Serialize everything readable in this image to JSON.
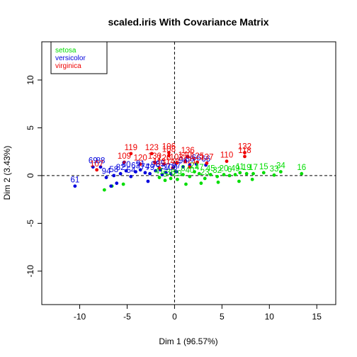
{
  "chart_data": {
    "type": "scatter",
    "title": "scaled.iris With Covariance Matrix",
    "xlabel": "Dim 1 (96.57%)",
    "ylabel": "Dim 2 (3.43%)",
    "xlim": [
      -14,
      17
    ],
    "ylim": [
      -13.5,
      14
    ],
    "xticks": [
      -10,
      -5,
      0,
      5,
      10,
      15
    ],
    "yticks": [
      -10,
      -5,
      0,
      5,
      10
    ],
    "grid": false,
    "reference_lines": {
      "x": 0,
      "y": 0,
      "style": "dashed"
    },
    "legend": {
      "position": "top-left",
      "entries": [
        {
          "name": "setosa",
          "color": "#00dd00"
        },
        {
          "name": "versicolor",
          "color": "#0000dd"
        },
        {
          "name": "virginica",
          "color": "#ee0000"
        }
      ]
    },
    "series": [
      {
        "name": "setosa",
        "color": "#00dd00",
        "points": [
          {
            "x": 13.4,
            "y": 0.2,
            "label": "16"
          },
          {
            "x": 11.2,
            "y": 0.4,
            "label": "34"
          },
          {
            "x": 10.5,
            "y": 0.05,
            "label": "33"
          },
          {
            "x": 9.4,
            "y": 0.3,
            "label": "15"
          },
          {
            "x": 8.3,
            "y": 0.2,
            "label": "17"
          },
          {
            "x": 7.6,
            "y": 0.2,
            "label": "19"
          },
          {
            "x": 6.9,
            "y": 0.3,
            "label": "11"
          },
          {
            "x": 6.4,
            "y": 0.1,
            "label": "49"
          },
          {
            "x": 5.8,
            "y": 0.0,
            "label": "6"
          },
          {
            "x": 5.2,
            "y": 0.1,
            "label": "20"
          },
          {
            "x": 4.5,
            "y": -0.1,
            "label": "32"
          },
          {
            "x": 3.8,
            "y": 0.1,
            "label": "45"
          },
          {
            "x": 3.2,
            "y": -0.3,
            "label": "23"
          },
          {
            "x": 2.6,
            "y": 0.2,
            "label": "47"
          },
          {
            "x": 2.1,
            "y": 0.4,
            "label": "21"
          },
          {
            "x": 1.6,
            "y": -0.1,
            "label": "40"
          },
          {
            "x": 0.9,
            "y": 0.1,
            "label": "8"
          },
          {
            "x": 0.3,
            "y": -0.4,
            "label": "29"
          },
          {
            "x": -0.4,
            "y": -0.3,
            "label": "36"
          },
          {
            "x": -1.0,
            "y": -0.5,
            "label": "5"
          },
          {
            "x": -1.6,
            "y": -0.2,
            "label": "41"
          },
          {
            "x": -7.4,
            "y": -1.5,
            "label": ""
          },
          {
            "x": -6.6,
            "y": -1.1,
            "label": ""
          },
          {
            "x": -5.4,
            "y": -0.9,
            "label": ""
          },
          {
            "x": 1.2,
            "y": -0.9,
            "label": ""
          },
          {
            "x": 2.8,
            "y": -0.8,
            "label": ""
          },
          {
            "x": 4.6,
            "y": -0.7,
            "label": ""
          },
          {
            "x": 6.8,
            "y": -0.6,
            "label": ""
          },
          {
            "x": 8.2,
            "y": -0.4,
            "label": ""
          }
        ]
      },
      {
        "name": "versicolor",
        "color": "#0000dd",
        "points": [
          {
            "x": -10.5,
            "y": -1.1,
            "label": "61"
          },
          {
            "x": -8.6,
            "y": 0.9,
            "label": "69"
          },
          {
            "x": -7.8,
            "y": 0.9,
            "label": "88"
          },
          {
            "x": -7.2,
            "y": -0.2,
            "label": "94"
          },
          {
            "x": -6.4,
            "y": 0.0,
            "label": "58"
          },
          {
            "x": -5.7,
            "y": 0.2,
            "label": "82"
          },
          {
            "x": -5.1,
            "y": 0.5,
            "label": "80"
          },
          {
            "x": -4.6,
            "y": -0.1,
            "label": "54"
          },
          {
            "x": -4.1,
            "y": 0.4,
            "label": "63"
          },
          {
            "x": -3.6,
            "y": 0.6,
            "label": "91"
          },
          {
            "x": -3.1,
            "y": 0.3,
            "label": "74"
          },
          {
            "x": -2.6,
            "y": 0.2,
            "label": "79"
          },
          {
            "x": -2.0,
            "y": 0.5,
            "label": "90"
          },
          {
            "x": -1.5,
            "y": 0.6,
            "label": "85"
          },
          {
            "x": -0.9,
            "y": 0.3,
            "label": "57"
          },
          {
            "x": -0.4,
            "y": 0.2,
            "label": "100"
          },
          {
            "x": 0.2,
            "y": 0.4,
            "label": "97"
          },
          {
            "x": 0.9,
            "y": 0.9,
            "label": "96"
          },
          {
            "x": 1.6,
            "y": 1.1,
            "label": "86"
          },
          {
            "x": 2.3,
            "y": 1.2,
            "label": "66"
          },
          {
            "x": 3.3,
            "y": 1.1,
            "label": "66"
          },
          {
            "x": -6.7,
            "y": -1.1,
            "label": ""
          },
          {
            "x": -6.1,
            "y": -0.8,
            "label": ""
          },
          {
            "x": -2.8,
            "y": -0.6,
            "label": ""
          },
          {
            "x": -1.3,
            "y": 0.1,
            "label": ""
          }
        ]
      },
      {
        "name": "virginica",
        "color": "#ee0000",
        "points": [
          {
            "x": 7.4,
            "y": 2.4,
            "label": "132"
          },
          {
            "x": 7.4,
            "y": 2.0,
            "label": "118"
          },
          {
            "x": 5.5,
            "y": 1.5,
            "label": "110"
          },
          {
            "x": -4.6,
            "y": 2.3,
            "label": "119"
          },
          {
            "x": -2.4,
            "y": 2.3,
            "label": "123"
          },
          {
            "x": -0.6,
            "y": 2.4,
            "label": "106"
          },
          {
            "x": -0.6,
            "y": 2.1,
            "label": "108"
          },
          {
            "x": 1.4,
            "y": 2.0,
            "label": "136"
          },
          {
            "x": -5.3,
            "y": 1.4,
            "label": "109"
          },
          {
            "x": -8.2,
            "y": 0.6,
            "label": "107"
          },
          {
            "x": -3.6,
            "y": 1.2,
            "label": "120"
          },
          {
            "x": -2.1,
            "y": 1.4,
            "label": "130"
          },
          {
            "x": -1.1,
            "y": 1.2,
            "label": "126"
          },
          {
            "x": 0.2,
            "y": 1.3,
            "label": "103"
          },
          {
            "x": 1.1,
            "y": 1.5,
            "label": "140"
          },
          {
            "x": 2.4,
            "y": 1.4,
            "label": "125"
          },
          {
            "x": 3.4,
            "y": 1.3,
            "label": "137"
          },
          {
            "x": -1.6,
            "y": 0.8,
            "label": "113"
          },
          {
            "x": -0.2,
            "y": 0.8,
            "label": "148"
          },
          {
            "x": 1.6,
            "y": 0.9,
            "label": "121"
          }
        ]
      }
    ]
  }
}
